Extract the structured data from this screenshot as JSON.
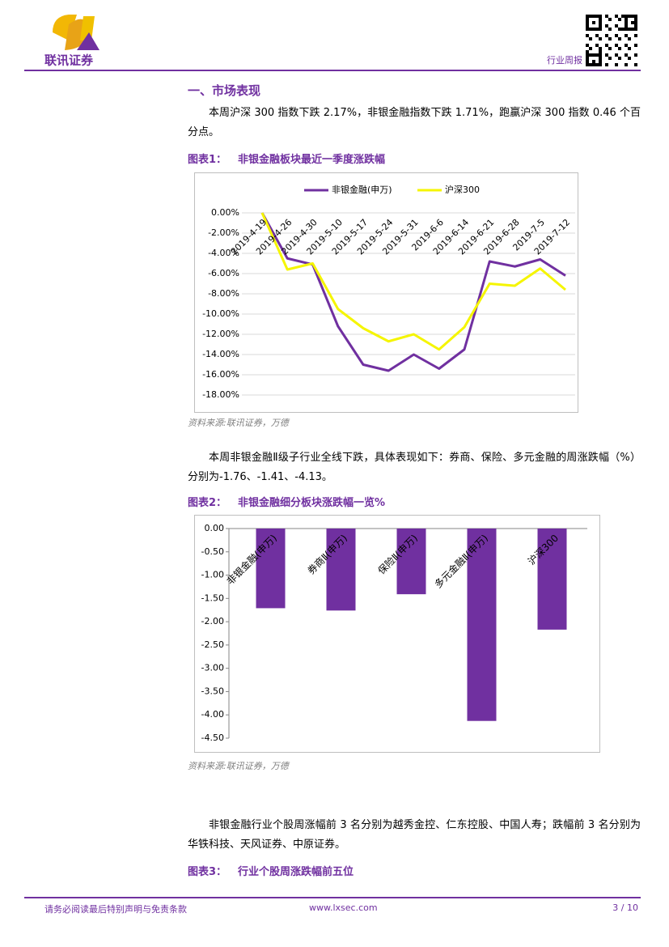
{
  "header": {
    "logo_text": "联讯证券",
    "report_type": "行业周报"
  },
  "section": {
    "heading": "一、市场表现"
  },
  "paragraphs": [
    "本周沪深 300 指数下跌 2.17%，非银金融指数下跌 1.71%，跑赢沪深 300 指数 0.46 个百分点。",
    "本周非银金融Ⅱ级子行业全线下跌，具体表现如下：券商、保险、多元金融的周涨跌幅（%）分别为-1.76、-1.41、-4.13。",
    "非银金融行业个股周涨幅前 3 名分别为越秀金控、仁东控股、中国人寿；跌幅前 3 名分别为华铁科技、天风证券、中原证券。"
  ],
  "figures": [
    {
      "label": "图表1：",
      "title": "非银金融板块最近一季度涨跌幅",
      "source": "资料来源:联讯证券，万德",
      "chart_data": {
        "type": "line",
        "categories": [
          "2019-4-19",
          "2019-4-26",
          "2019-4-30",
          "2019-5-10",
          "2019-5-17",
          "2019-5-24",
          "2019-5-31",
          "2019-6-6",
          "2019-6-14",
          "2019-6-21",
          "2019-6-28",
          "2019-7-5",
          "2019-7-12"
        ],
        "series": [
          {
            "name": "非银金融(申万)",
            "color": "#7030a0",
            "values": [
              0,
              -4.5,
              -5.1,
              -11.2,
              -15.0,
              -15.6,
              -14.0,
              -15.4,
              -13.5,
              -4.8,
              -5.3,
              -4.6,
              -6.2
            ]
          },
          {
            "name": "沪深300",
            "color": "#f5f500",
            "values": [
              0,
              -5.6,
              -5.0,
              -9.5,
              -11.4,
              -12.7,
              -12.0,
              -13.5,
              -11.3,
              -7.0,
              -7.2,
              -5.5,
              -7.6
            ]
          }
        ],
        "ylim": [
          -18,
          0
        ],
        "yticks": [
          {
            "value": 0,
            "label": "0.00%"
          },
          {
            "value": -2,
            "label": "-2.00%"
          },
          {
            "value": -4,
            "label": "-4.00%"
          },
          {
            "value": -6,
            "label": "-6.00%"
          },
          {
            "value": -8,
            "label": "-8.00%"
          },
          {
            "value": -10,
            "label": "-10.00%"
          },
          {
            "value": -12,
            "label": "-12.00%"
          },
          {
            "value": -14,
            "label": "-14.00%"
          },
          {
            "value": -16,
            "label": "-16.00%"
          },
          {
            "value": -18,
            "label": "-18.00%"
          }
        ],
        "grid": true,
        "legend": "top"
      }
    },
    {
      "label": "图表2：",
      "title": "非银金融细分板块涨跌幅一览%",
      "source": "资料来源:联讯证券，万德",
      "chart_data": {
        "type": "bar",
        "categories": [
          "非银金融(申万)",
          "券商Ⅱ(申万)",
          "保险Ⅱ(申万)",
          "多元金融Ⅱ(申万)",
          "沪深300"
        ],
        "values": [
          -1.71,
          -1.76,
          -1.41,
          -4.13,
          -2.17
        ],
        "color": "#7030a0",
        "ylim": [
          -4.5,
          0
        ],
        "yticks": [
          {
            "value": 0,
            "label": "0.00"
          },
          {
            "value": -0.5,
            "label": "-0.50"
          },
          {
            "value": -1,
            "label": "-1.00"
          },
          {
            "value": -1.5,
            "label": "-1.50"
          },
          {
            "value": -2,
            "label": "-2.00"
          },
          {
            "value": -2.5,
            "label": "-2.50"
          },
          {
            "value": -3,
            "label": "-3.00"
          },
          {
            "value": -3.5,
            "label": "-3.50"
          },
          {
            "value": -4,
            "label": "-4.00"
          },
          {
            "value": -4.5,
            "label": "-4.50"
          }
        ],
        "grid": false
      }
    }
  ],
  "figure3": {
    "label": "图表3：",
    "title": "行业个股周涨跌幅前五位"
  },
  "footer": {
    "disclaimer": "请务必阅读最后特别声明与免责条款",
    "website": "www.lxsec.com",
    "page": "3 / 10"
  }
}
